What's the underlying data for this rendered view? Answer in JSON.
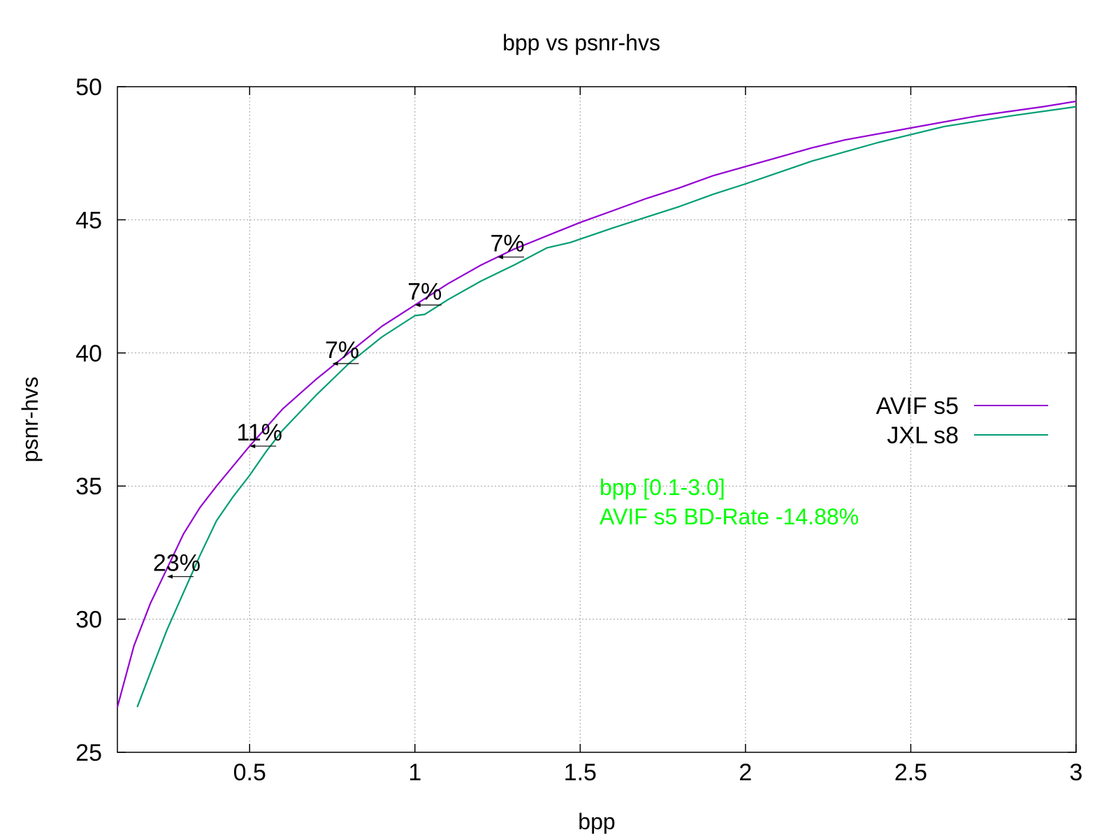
{
  "chart_data": {
    "type": "line",
    "title": "bpp vs psnr-hvs",
    "xlabel": "bpp",
    "ylabel": "psnr-hvs",
    "xlim": [
      0.1,
      3.0
    ],
    "ylim": [
      25,
      50
    ],
    "xticks": [
      0.5,
      1,
      1.5,
      2,
      2.5,
      3
    ],
    "xtick_labels": [
      "0.5",
      "1",
      "1.5",
      "2",
      "2.5",
      "3"
    ],
    "yticks": [
      25,
      30,
      35,
      40,
      45,
      50
    ],
    "ytick_labels": [
      "25",
      "30",
      "35",
      "40",
      "45",
      "50"
    ],
    "grid": true,
    "legend_position": "right",
    "series": [
      {
        "name": "AVIF s5",
        "color": "#9400d3",
        "x": [
          0.1,
          0.15,
          0.2,
          0.25,
          0.3,
          0.35,
          0.4,
          0.5,
          0.6,
          0.7,
          0.8,
          0.9,
          1.0,
          1.1,
          1.2,
          1.3,
          1.4,
          1.5,
          1.6,
          1.7,
          1.8,
          1.9,
          2.0,
          2.1,
          2.2,
          2.3,
          2.5,
          2.7,
          2.9,
          3.0
        ],
        "y": [
          26.7,
          29.0,
          30.6,
          31.9,
          33.2,
          34.2,
          35.0,
          36.5,
          37.9,
          39.0,
          40.0,
          41.0,
          41.8,
          42.6,
          43.3,
          43.9,
          44.4,
          44.9,
          45.35,
          45.8,
          46.2,
          46.65,
          47.0,
          47.35,
          47.7,
          48.0,
          48.45,
          48.9,
          49.25,
          49.45
        ]
      },
      {
        "name": "JXL s8",
        "color": "#009e73",
        "x": [
          0.16,
          0.2,
          0.25,
          0.3,
          0.35,
          0.4,
          0.45,
          0.5,
          0.55,
          0.6,
          0.7,
          0.8,
          0.9,
          1.0,
          1.03,
          1.1,
          1.2,
          1.3,
          1.4,
          1.47,
          1.6,
          1.7,
          1.8,
          1.9,
          2.0,
          2.2,
          2.4,
          2.6,
          2.8,
          3.0
        ],
        "y": [
          26.7,
          28.0,
          29.6,
          31.0,
          32.4,
          33.7,
          34.6,
          35.4,
          36.3,
          37.1,
          38.4,
          39.6,
          40.6,
          41.4,
          41.45,
          42.0,
          42.7,
          43.3,
          43.95,
          44.15,
          44.7,
          45.1,
          45.5,
          45.95,
          46.35,
          47.2,
          47.9,
          48.5,
          48.9,
          49.25
        ]
      }
    ],
    "annotations": [
      {
        "text": "23%",
        "x": 0.25,
        "y": 31.6
      },
      {
        "text": "11%",
        "x": 0.5,
        "y": 36.5
      },
      {
        "text": "7%",
        "x": 0.75,
        "y": 39.6
      },
      {
        "text": "7%",
        "x": 1.0,
        "y": 41.8
      },
      {
        "text": "7%",
        "x": 1.25,
        "y": 43.6
      }
    ],
    "note_lines": [
      "bpp [0.1-3.0]",
      "AVIF s5 BD-Rate -14.88%"
    ],
    "note_color": "#00ff00"
  }
}
